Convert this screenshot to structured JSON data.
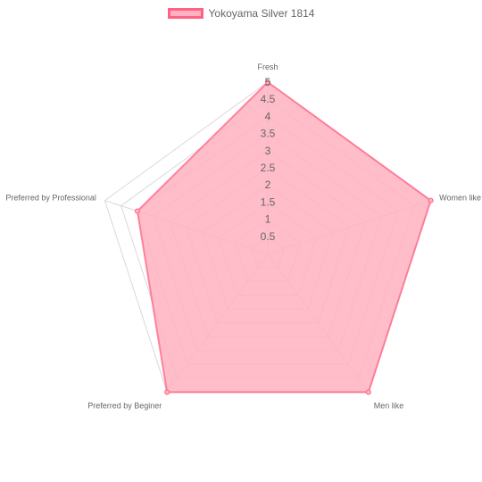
{
  "chart_data": {
    "type": "radar",
    "title": "",
    "labels": [
      "Fresh",
      "Women like",
      "Men like",
      "Preferred by Beginer",
      "Preferred by Professional"
    ],
    "series": [
      {
        "name": "Yokoyama Silver 1814",
        "values": [
          5,
          5,
          5,
          5,
          4
        ],
        "fill_color": "#ffb1c1",
        "border_color": "#ff6384"
      }
    ],
    "r_min": 0,
    "r_max": 5,
    "ticks": [
      "0.5",
      "1",
      "1.5",
      "2",
      "2.5",
      "3",
      "3.5",
      "4",
      "4.5",
      "5"
    ],
    "grid": true,
    "legend_position": "top"
  }
}
